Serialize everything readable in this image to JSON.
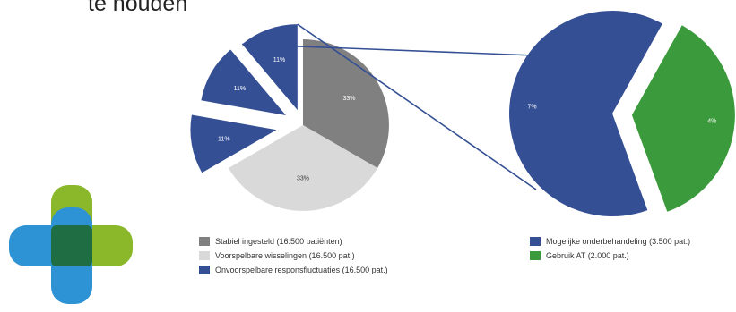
{
  "heading": "te houden",
  "colors": {
    "stable": "#808080",
    "switches": "#d9d9d9",
    "fluctuations": "#344f94",
    "undertreatment": "#344f94",
    "usage_at": "#3b9a3b",
    "logo_green": "#8ab82a",
    "logo_blue": "#2e93d4",
    "logo_overlap": "#1f6e43"
  },
  "chart_data": {
    "type": "pie",
    "main_pie": {
      "slices": [
        {
          "label": "Stabiel ingesteld (16.500 patiënten)",
          "value": 33,
          "display": "33%",
          "color_key": "stable"
        },
        {
          "label": "Voorspelbare wisselingen (16.500 pat.)",
          "value": 33,
          "display": "33%",
          "color_key": "switches"
        },
        {
          "label": "Onvoorspelbare responsfluctuaties (16.500 pat.)",
          "value": 11,
          "display": "11%",
          "color_key": "fluctuations"
        },
        {
          "label": "Onvoorspelbare responsfluctuaties (16.500 pat.)",
          "value": 11,
          "display": "11%",
          "color_key": "fluctuations"
        },
        {
          "label": "Onvoorspelbare responsfluctuaties (16.500 pat.)",
          "value": 11,
          "display": "11%",
          "color_key": "fluctuations"
        }
      ]
    },
    "detail_pie": {
      "slices": [
        {
          "label": "Mogelijke onderbehandeling (3.500 pat.)",
          "value": 7,
          "display": "7%",
          "color_key": "undertreatment"
        },
        {
          "label": "Gebruik AT (2.000 pat.)",
          "value": 4,
          "display": "4%",
          "color_key": "usage_at"
        }
      ]
    },
    "legend_left": [
      {
        "label": "Stabiel ingesteld (16.500 patiënten)",
        "color_key": "stable"
      },
      {
        "label": "Voorspelbare wisselingen (16.500 pat.)",
        "color_key": "switches"
      },
      {
        "label": "Onvoorspelbare responsfluctuaties (16.500 pat.)",
        "color_key": "fluctuations"
      }
    ],
    "legend_right": [
      {
        "label": "Mogelijke onderbehandeling (3.500 pat.)",
        "color_key": "undertreatment"
      },
      {
        "label": "Gebruik AT (2.000 pat.)",
        "color_key": "usage_at"
      }
    ]
  }
}
